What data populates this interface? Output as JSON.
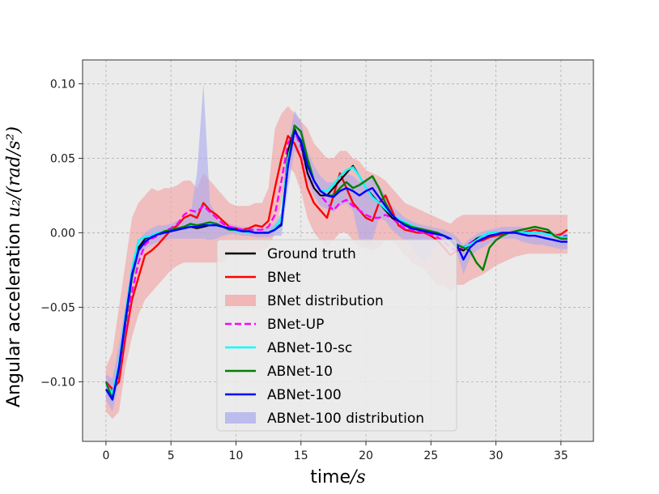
{
  "chart_data": {
    "type": "line",
    "title": "",
    "xlabel": "time/s",
    "xlabel_text": "time",
    "xlabel_math": "/s",
    "ylabel": "Angular acceleration u_2/(rad/s^2)",
    "ylabel_text": "Angular acceleration",
    "ylabel_math": "u₂/(rad/s²)",
    "xlim": [
      -1.8,
      37.5
    ],
    "ylim": [
      -0.14,
      0.116
    ],
    "xticks": [
      0,
      5,
      10,
      15,
      20,
      25,
      30,
      35
    ],
    "xtick_labels": [
      "0",
      "5",
      "10",
      "15",
      "20",
      "25",
      "30",
      "35"
    ],
    "yticks": [
      -0.1,
      -0.05,
      0.0,
      0.05,
      0.1
    ],
    "ytick_labels": [
      "−0.10",
      "−0.05",
      "0.00",
      "0.05",
      "0.10"
    ],
    "grid": true,
    "legend_position": "lower-center",
    "colors": {
      "background": "#ebebeb",
      "grid": "#b0b0b0",
      "ground_truth": "#000000",
      "bnet": "#ff0000",
      "bnet_dist": "#f4a0a0",
      "bnet_up": "#ff00ff",
      "abnet_10_sc": "#00ffff",
      "abnet_10": "#008000",
      "abnet_100": "#0000ff",
      "abnet_100_dist": "#a8a8f0"
    },
    "x": [
      0,
      0.5,
      1,
      1.5,
      2,
      2.5,
      3,
      3.5,
      4,
      4.5,
      5,
      5.5,
      6,
      6.5,
      7,
      7.5,
      8,
      8.5,
      9,
      9.5,
      10,
      10.5,
      11,
      11.5,
      12,
      12.5,
      13,
      13.5,
      14,
      14.5,
      15,
      15.5,
      16,
      16.5,
      17,
      17.5,
      18,
      18.5,
      19,
      19.5,
      20,
      20.5,
      21,
      21.5,
      22,
      22.5,
      23,
      23.5,
      24,
      24.5,
      25,
      25.5,
      26,
      26.5,
      27,
      27.5,
      28,
      28.5,
      29,
      29.5,
      30,
      30.5,
      31,
      31.5,
      32,
      32.5,
      33,
      33.5,
      34,
      34.5,
      35,
      35.5
    ],
    "series": [
      {
        "name": "Ground truth",
        "key": "ground_truth",
        "style": "line",
        "values": [
          -0.105,
          -0.11,
          -0.09,
          -0.06,
          -0.03,
          -0.01,
          -0.004,
          -0.002,
          0,
          0.001,
          0.002,
          0.002,
          0.003,
          0.004,
          0.003,
          0.004,
          0.005,
          0.006,
          0.004,
          0.002,
          0.002,
          0.001,
          0.001,
          0,
          0,
          0,
          0.002,
          0.005,
          0.055,
          0.07,
          0.06,
          0.04,
          0.03,
          0.025,
          0.025,
          0.03,
          0.035,
          0.04,
          0.045,
          0.038,
          0.03,
          0.025,
          0.02,
          0.015,
          0.01,
          0.008,
          0.006,
          0.004,
          0.003,
          0.002,
          0.001,
          0,
          -0.002,
          -0.005,
          -0.01,
          -0.012,
          -0.008,
          -0.004,
          -0.002,
          0,
          0,
          0,
          0,
          0,
          0,
          0,
          0,
          0,
          0,
          -0.002,
          -0.003,
          -0.003
        ]
      },
      {
        "name": "BNet",
        "key": "bnet",
        "style": "line",
        "values": [
          -0.1,
          -0.105,
          -0.1,
          -0.07,
          -0.045,
          -0.03,
          -0.015,
          -0.012,
          -0.008,
          -0.003,
          0.002,
          0.005,
          0.01,
          0.012,
          0.01,
          0.02,
          0.015,
          0.012,
          0.008,
          0.004,
          0.003,
          0.002,
          0.003,
          0.005,
          0.004,
          0.008,
          0.03,
          0.05,
          0.065,
          0.06,
          0.05,
          0.03,
          0.02,
          0.015,
          0.01,
          0.025,
          0.04,
          0.03,
          0.02,
          0.015,
          0.01,
          0.008,
          0.02,
          0.025,
          0.015,
          0.005,
          0.002,
          0.001,
          0,
          0,
          -0.002,
          -0.005,
          -0.01,
          -0.015,
          -0.012,
          -0.01,
          -0.008,
          -0.006,
          -0.005,
          -0.003,
          -0.002,
          -0.001,
          0,
          0,
          0,
          0.001,
          0.002,
          0.001,
          0,
          -0.002,
          -0.001,
          0.002
        ]
      },
      {
        "name": "BNet-UP",
        "key": "bnet_up",
        "style": "dashed",
        "values": [
          -0.1,
          -0.108,
          -0.095,
          -0.065,
          -0.04,
          -0.02,
          -0.008,
          -0.004,
          -0.002,
          0.001,
          0.003,
          0.006,
          0.012,
          0.015,
          0.014,
          0.018,
          0.014,
          0.01,
          0.006,
          0.004,
          0.003,
          0.002,
          0.002,
          0.002,
          0.002,
          0.004,
          0.012,
          0.035,
          0.06,
          0.068,
          0.058,
          0.04,
          0.03,
          0.025,
          0.02,
          0.015,
          0.02,
          0.022,
          0.018,
          0.015,
          0.012,
          0.01,
          0.01,
          0.012,
          0.01,
          0.006,
          0.003,
          0.002,
          0.001,
          0,
          -0.001,
          -0.003,
          -0.006,
          -0.01,
          -0.012,
          -0.01,
          -0.007,
          -0.004,
          -0.003,
          -0.002,
          -0.001,
          0,
          0,
          0,
          0,
          0,
          0,
          0,
          -0.001,
          -0.002,
          -0.002,
          -0.002
        ]
      },
      {
        "name": "ABNet-10-sc",
        "key": "abnet_10_sc",
        "style": "line",
        "values": [
          -0.102,
          -0.108,
          -0.088,
          -0.055,
          -0.025,
          -0.005,
          -0.003,
          -0.002,
          0,
          0.001,
          0.002,
          0.003,
          0.004,
          0.005,
          0.004,
          0.005,
          0.006,
          0.005,
          0.004,
          0.002,
          0.001,
          0.001,
          0,
          0,
          0,
          0,
          0.003,
          0.01,
          0.05,
          0.068,
          0.062,
          0.045,
          0.035,
          0.028,
          0.028,
          0.032,
          0.038,
          0.042,
          0.044,
          0.038,
          0.03,
          0.024,
          0.02,
          0.016,
          0.012,
          0.009,
          0.007,
          0.005,
          0.003,
          0.002,
          0.001,
          0,
          -0.002,
          -0.004,
          -0.008,
          -0.01,
          -0.008,
          -0.005,
          -0.002,
          0,
          0,
          0,
          0,
          0,
          0,
          0,
          0,
          0,
          -0.001,
          -0.002,
          -0.003,
          -0.003
        ]
      },
      {
        "name": "ABNet-10",
        "key": "abnet_10",
        "style": "line",
        "values": [
          -0.1,
          -0.112,
          -0.092,
          -0.06,
          -0.03,
          -0.012,
          -0.006,
          -0.003,
          -0.001,
          0.001,
          0.002,
          0.003,
          0.004,
          0.006,
          0.005,
          0.006,
          0.007,
          0.006,
          0.004,
          0.002,
          0.002,
          0.001,
          0.001,
          0,
          0,
          0,
          0.002,
          0.006,
          0.045,
          0.072,
          0.068,
          0.05,
          0.035,
          0.028,
          0.025,
          0.025,
          0.03,
          0.034,
          0.03,
          0.032,
          0.035,
          0.038,
          0.03,
          0.02,
          0.012,
          0.008,
          0.006,
          0.004,
          0.003,
          0.002,
          0.001,
          0,
          -0.002,
          -0.004,
          -0.008,
          -0.01,
          -0.012,
          -0.02,
          -0.025,
          -0.01,
          -0.005,
          -0.002,
          0,
          0.001,
          0.002,
          0.003,
          0.004,
          0.003,
          0.002,
          -0.002,
          -0.004,
          -0.004
        ]
      },
      {
        "name": "ABNet-100",
        "key": "abnet_100",
        "style": "line",
        "values": [
          -0.105,
          -0.112,
          -0.09,
          -0.058,
          -0.028,
          -0.012,
          -0.006,
          -0.003,
          -0.001,
          0,
          0.001,
          0.002,
          0.003,
          0.004,
          0.004,
          0.005,
          0.005,
          0.005,
          0.004,
          0.003,
          0.002,
          0.001,
          0.001,
          0,
          0,
          0,
          0.002,
          0.006,
          0.045,
          0.068,
          0.062,
          0.045,
          0.035,
          0.028,
          0.025,
          0.024,
          0.028,
          0.03,
          0.028,
          0.025,
          0.028,
          0.03,
          0.024,
          0.018,
          0.012,
          0.008,
          0.005,
          0.003,
          0.002,
          0.001,
          0,
          -0.001,
          -0.002,
          -0.004,
          -0.008,
          -0.018,
          -0.01,
          -0.006,
          -0.004,
          -0.002,
          -0.001,
          0,
          0,
          0,
          -0.001,
          -0.002,
          -0.002,
          -0.003,
          -0.004,
          -0.005,
          -0.006,
          -0.006
        ]
      }
    ],
    "bands": [
      {
        "name": "BNet distribution",
        "key": "bnet_dist",
        "upper": [
          -0.09,
          -0.08,
          -0.05,
          -0.02,
          0.01,
          0.02,
          0.025,
          0.03,
          0.028,
          0.03,
          0.03,
          0.032,
          0.035,
          0.035,
          0.03,
          0.04,
          0.035,
          0.03,
          0.025,
          0.02,
          0.018,
          0.018,
          0.018,
          0.02,
          0.02,
          0.03,
          0.07,
          0.08,
          0.085,
          0.08,
          0.075,
          0.07,
          0.06,
          0.055,
          0.05,
          0.05,
          0.055,
          0.055,
          0.05,
          0.048,
          0.042,
          0.04,
          0.038,
          0.035,
          0.03,
          0.025,
          0.02,
          0.018,
          0.016,
          0.014,
          0.012,
          0.01,
          0.008,
          0.006,
          0.01,
          0.012,
          0.012,
          0.012,
          0.012,
          0.012,
          0.012,
          0.012,
          0.012,
          0.012,
          0.012,
          0.012,
          0.012,
          0.012,
          0.012,
          0.012,
          0.012,
          0.012
        ],
        "lower": [
          -0.12,
          -0.125,
          -0.12,
          -0.09,
          -0.07,
          -0.055,
          -0.045,
          -0.04,
          -0.035,
          -0.03,
          -0.025,
          -0.022,
          -0.02,
          -0.02,
          -0.02,
          -0.02,
          -0.02,
          -0.02,
          -0.02,
          -0.015,
          -0.012,
          -0.012,
          -0.012,
          -0.012,
          -0.012,
          -0.01,
          0.0,
          0.02,
          0.045,
          0.04,
          0.028,
          0.01,
          0.0,
          -0.005,
          -0.01,
          -0.005,
          0.0,
          0.0,
          -0.005,
          -0.01,
          -0.01,
          -0.012,
          -0.01,
          -0.005,
          -0.005,
          -0.01,
          -0.015,
          -0.02,
          -0.022,
          -0.025,
          -0.03,
          -0.035,
          -0.035,
          -0.04,
          -0.035,
          -0.035,
          -0.032,
          -0.03,
          -0.028,
          -0.025,
          -0.022,
          -0.02,
          -0.018,
          -0.016,
          -0.015,
          -0.014,
          -0.014,
          -0.014,
          -0.014,
          -0.014,
          -0.014,
          -0.014
        ]
      },
      {
        "name": "ABNet-100 distribution",
        "key": "abnet_100_dist",
        "upper": [
          -0.095,
          -0.098,
          -0.075,
          -0.048,
          -0.02,
          -0.005,
          0.0,
          0.003,
          0.005,
          0.005,
          0.006,
          0.008,
          0.01,
          0.012,
          0.04,
          0.1,
          0.02,
          0.012,
          0.008,
          0.006,
          0.005,
          0.004,
          0.004,
          0.003,
          0.003,
          0.004,
          0.006,
          0.014,
          0.06,
          0.082,
          0.075,
          0.055,
          0.045,
          0.038,
          0.034,
          0.034,
          0.038,
          0.04,
          0.038,
          0.034,
          0.036,
          0.038,
          0.032,
          0.025,
          0.018,
          0.014,
          0.01,
          0.008,
          0.006,
          0.005,
          0.004,
          0.003,
          0.002,
          0.0,
          -0.003,
          -0.008,
          -0.004,
          -0.001,
          0.001,
          0.002,
          0.003,
          0.004,
          0.004,
          0.004,
          0.004,
          0.003,
          0.003,
          0.002,
          0.001,
          0.0,
          -0.001,
          -0.001
        ],
        "lower": [
          -0.112,
          -0.12,
          -0.1,
          -0.066,
          -0.035,
          -0.018,
          -0.011,
          -0.008,
          -0.006,
          -0.005,
          -0.004,
          -0.004,
          -0.004,
          -0.004,
          -0.004,
          -0.004,
          -0.005,
          -0.004,
          -0.002,
          -0.001,
          -0.001,
          -0.002,
          -0.002,
          -0.003,
          -0.003,
          -0.003,
          -0.002,
          -0.002,
          0.03,
          0.055,
          0.05,
          0.035,
          0.025,
          0.018,
          0.016,
          0.014,
          0.018,
          0.02,
          0.015,
          -0.005,
          -0.01,
          -0.005,
          0.01,
          0.008,
          0.002,
          -0.002,
          -0.005,
          -0.01,
          -0.015,
          -0.02,
          -0.014,
          -0.007,
          -0.007,
          -0.009,
          -0.013,
          -0.028,
          -0.017,
          -0.012,
          -0.01,
          -0.007,
          -0.005,
          -0.004,
          -0.004,
          -0.004,
          -0.006,
          -0.007,
          -0.008,
          -0.008,
          -0.009,
          -0.01,
          -0.011,
          -0.011
        ]
      }
    ],
    "legend": [
      {
        "label": "Ground truth",
        "key": "ground_truth",
        "kind": "line"
      },
      {
        "label": "BNet",
        "key": "bnet",
        "kind": "line"
      },
      {
        "label": "BNet distribution",
        "key": "bnet_dist",
        "kind": "patch"
      },
      {
        "label": "BNet-UP",
        "key": "bnet_up",
        "kind": "dashed"
      },
      {
        "label": "ABNet-10-sc",
        "key": "abnet_10_sc",
        "kind": "line"
      },
      {
        "label": "ABNet-10",
        "key": "abnet_10",
        "kind": "line"
      },
      {
        "label": "ABNet-100",
        "key": "abnet_100",
        "kind": "line"
      },
      {
        "label": "ABNet-100 distribution",
        "key": "abnet_100_dist",
        "kind": "patch"
      }
    ]
  }
}
